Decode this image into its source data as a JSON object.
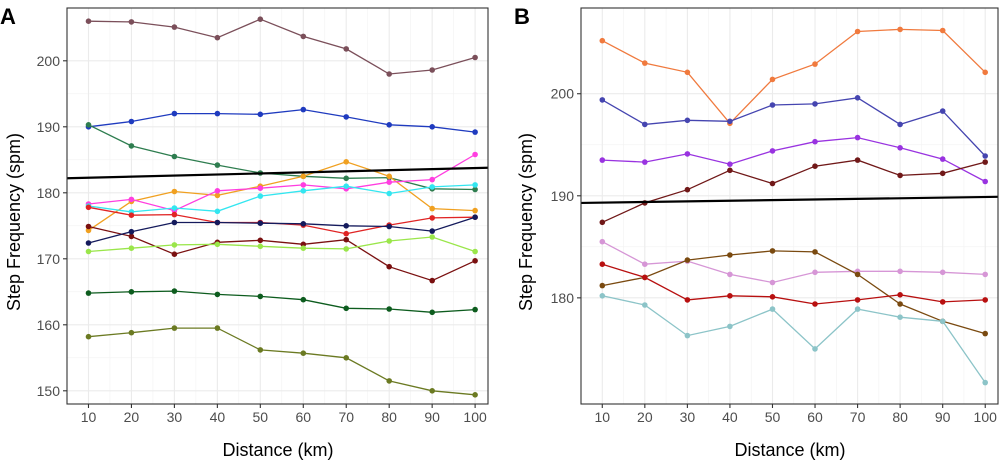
{
  "chart_data": [
    {
      "panel": "A",
      "type": "line",
      "xlabel": "Distance (km)",
      "ylabel": "Step Frequency (spm)",
      "xlim": [
        5,
        103
      ],
      "ylim": [
        148,
        208
      ],
      "x_ticks": [
        10,
        20,
        30,
        40,
        50,
        60,
        70,
        80,
        90,
        100
      ],
      "y_ticks": [
        150,
        160,
        170,
        180,
        190,
        200
      ],
      "grid": true,
      "x": [
        10,
        20,
        30,
        40,
        50,
        60,
        70,
        80,
        90,
        100
      ],
      "series": [
        {
          "color": "#7b4f5a",
          "values": [
            206.0,
            205.9,
            205.1,
            203.5,
            206.3,
            203.7,
            201.8,
            198.0,
            198.6,
            200.5
          ]
        },
        {
          "color": "#1f3bbf",
          "values": [
            190.0,
            190.8,
            192.0,
            192.0,
            191.9,
            192.6,
            191.5,
            190.3,
            190.0,
            189.2
          ]
        },
        {
          "color": "#2e7d4f",
          "values": [
            190.3,
            187.1,
            185.5,
            184.2,
            183.0,
            182.5,
            182.2,
            182.3,
            180.6,
            180.5
          ]
        },
        {
          "color": "#f0a020",
          "values": [
            174.3,
            178.7,
            180.2,
            179.6,
            181.0,
            182.5,
            184.7,
            182.5,
            177.6,
            177.3
          ]
        },
        {
          "color": "#ff3ee0",
          "values": [
            178.3,
            179.0,
            177.3,
            180.3,
            180.7,
            181.2,
            180.6,
            181.6,
            182.0,
            185.8
          ]
        },
        {
          "color": "#33e6f0",
          "values": [
            178.0,
            177.1,
            177.7,
            177.2,
            179.5,
            180.3,
            181.0,
            179.9,
            180.9,
            181.2
          ]
        },
        {
          "color": "#e02424",
          "values": [
            177.8,
            176.6,
            176.7,
            175.5,
            175.5,
            175.1,
            173.8,
            175.1,
            176.2,
            176.3
          ]
        },
        {
          "color": "#7a1010",
          "values": [
            174.9,
            173.4,
            170.7,
            172.5,
            172.8,
            172.2,
            172.9,
            168.8,
            166.7,
            169.7
          ]
        },
        {
          "color": "#141a5c",
          "values": [
            172.4,
            174.1,
            175.5,
            175.5,
            175.4,
            175.3,
            175.0,
            174.9,
            174.2,
            176.3
          ]
        },
        {
          "color": "#9ae64a",
          "values": [
            171.1,
            171.6,
            172.1,
            172.2,
            171.9,
            171.6,
            171.5,
            172.7,
            173.3,
            171.1
          ]
        },
        {
          "color": "#0d5c1e",
          "values": [
            164.8,
            165.0,
            165.1,
            164.6,
            164.3,
            163.8,
            162.5,
            162.4,
            161.9,
            162.3
          ]
        },
        {
          "color": "#6b7a22",
          "values": [
            158.2,
            158.8,
            159.5,
            159.5,
            156.2,
            155.7,
            155.0,
            151.5,
            150.0,
            149.4
          ]
        }
      ],
      "trend_line": {
        "x": [
          5,
          103
        ],
        "y": [
          182.2,
          183.8
        ],
        "color": "#000000"
      }
    },
    {
      "panel": "B",
      "type": "line",
      "xlabel": "Distance (km)",
      "ylabel": "Step Frequency (spm)",
      "xlim": [
        5,
        103
      ],
      "ylim": [
        169.6,
        208.4
      ],
      "x_ticks": [
        10,
        20,
        30,
        40,
        50,
        60,
        70,
        80,
        90,
        100
      ],
      "y_ticks": [
        180,
        190,
        200
      ],
      "grid": true,
      "x": [
        10,
        20,
        30,
        40,
        50,
        60,
        70,
        80,
        90,
        100
      ],
      "series": [
        {
          "color": "#f07a3e",
          "values": [
            205.2,
            203.0,
            202.1,
            197.1,
            201.4,
            202.9,
            206.1,
            206.3,
            206.2,
            202.1
          ]
        },
        {
          "color": "#4545b0",
          "values": [
            199.4,
            197.0,
            197.4,
            197.3,
            198.9,
            199.0,
            199.6,
            197.0,
            198.3,
            193.9
          ]
        },
        {
          "color": "#9933e0",
          "values": [
            193.5,
            193.3,
            194.1,
            193.1,
            194.4,
            195.3,
            195.7,
            194.7,
            193.6,
            191.4
          ]
        },
        {
          "color": "#701818",
          "values": [
            187.4,
            189.3,
            190.6,
            192.5,
            191.2,
            192.9,
            193.5,
            192.0,
            192.2,
            193.3
          ]
        },
        {
          "color": "#d696d6",
          "values": [
            185.5,
            183.3,
            183.6,
            182.3,
            181.5,
            182.5,
            182.6,
            182.6,
            182.5,
            182.3
          ]
        },
        {
          "color": "#7a4a10",
          "values": [
            181.2,
            182.0,
            183.7,
            184.2,
            184.6,
            184.5,
            182.3,
            179.4,
            177.7,
            176.5
          ]
        },
        {
          "color": "#b81010",
          "values": [
            183.3,
            182.0,
            179.8,
            180.2,
            180.1,
            179.4,
            179.8,
            180.3,
            179.6,
            179.8
          ]
        },
        {
          "color": "#8cc4c8",
          "values": [
            180.2,
            179.3,
            176.3,
            177.2,
            178.9,
            175.0,
            178.9,
            178.1,
            177.7,
            171.7
          ]
        }
      ],
      "trend_line": {
        "x": [
          5,
          103
        ],
        "y": [
          189.3,
          189.9
        ],
        "color": "#000000"
      }
    }
  ]
}
